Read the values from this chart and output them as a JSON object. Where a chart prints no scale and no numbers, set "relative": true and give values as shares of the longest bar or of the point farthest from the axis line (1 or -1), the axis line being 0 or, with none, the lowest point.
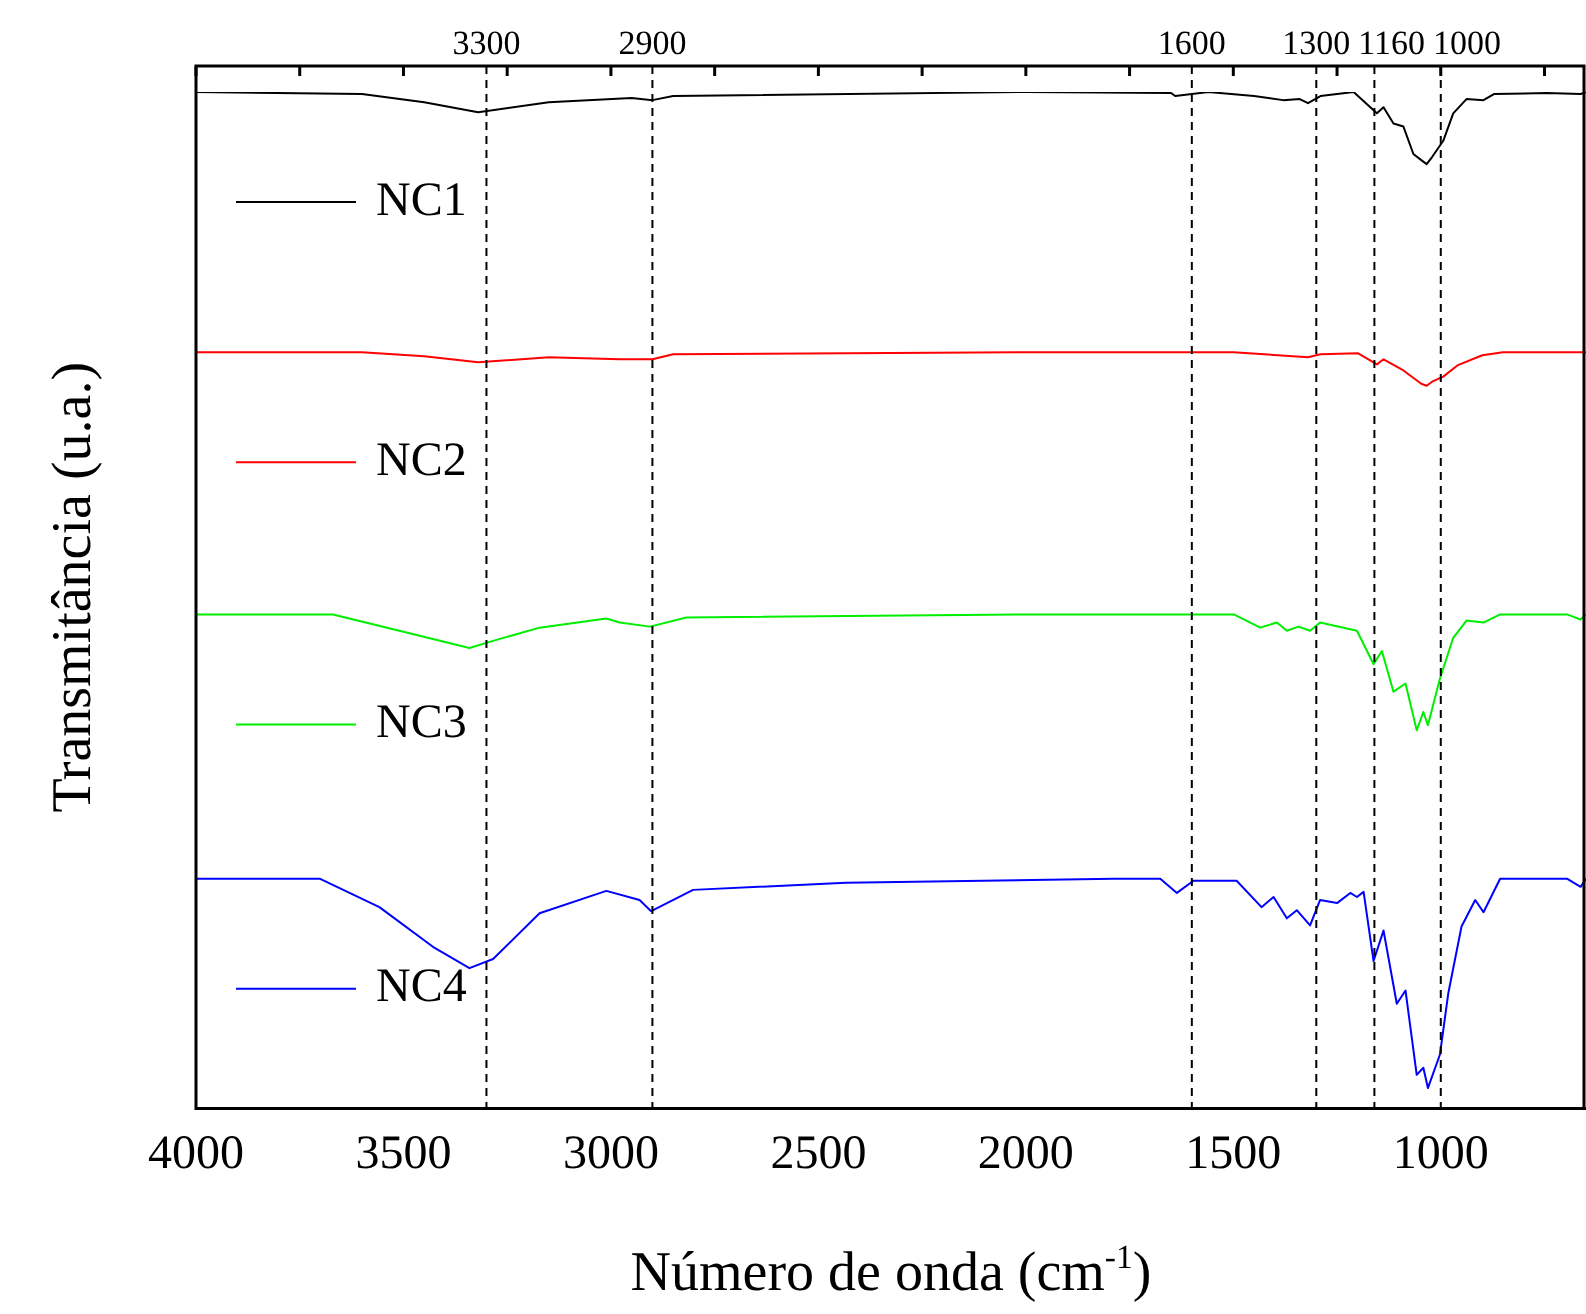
{
  "chart_data": {
    "type": "line",
    "relative": true,
    "xlabel": "Número de onda (cm$^{-1}$)",
    "ylabel": "Transmitância (u.a.)",
    "xlim": [
      4000,
      650
    ],
    "xticks": [
      4000,
      {
        "value": 3750,
        "label": null
      },
      3500,
      {
        "value": 3250,
        "label": null
      },
      3000,
      {
        "value": 2750,
        "label": null
      },
      2500,
      {
        "value": 2250,
        "label": null
      },
      2000,
      {
        "value": 1750,
        "label": null
      },
      1500,
      {
        "value": 1250,
        "label": null
      },
      1000,
      {
        "value": 750,
        "label": null
      }
    ],
    "marker": "none",
    "line_style": "solid",
    "legend": "left",
    "ref_lines": [
      {
        "axis": "x",
        "value": 3300,
        "label": "3300",
        "line_style": "dashed",
        "color": "#000000"
      },
      {
        "axis": "x",
        "value": 2900,
        "label": "2900",
        "line_style": "dashed",
        "color": "#000000"
      },
      {
        "axis": "x",
        "value": 1600,
        "label": "1600",
        "line_style": "dashed",
        "color": "#000000"
      },
      {
        "axis": "x",
        "value": 1300,
        "label": "1300",
        "line_style": "dashed",
        "color": "#000000"
      },
      {
        "axis": "x",
        "value": 1160,
        "label": "1160",
        "line_style": "dashed",
        "color": "#000000"
      },
      {
        "axis": "x",
        "value": 1000,
        "label": "1000",
        "line_style": "dashed",
        "color": "#000000"
      }
    ],
    "series": [
      {
        "name": "NC1",
        "color": "#000000",
        "x": [
          4000,
          3600,
          3450,
          3320,
          3150,
          2950,
          2900,
          2850,
          2000,
          1650,
          1640,
          1560,
          1450,
          1380,
          1340,
          1320,
          1290,
          1210,
          1154,
          1138,
          1114,
          1090,
          1066,
          1047,
          1034,
          1021,
          994,
          970,
          938,
          897,
          872,
          745,
          663,
          650
        ],
        "values": [
          1.0,
          0.998,
          0.99,
          0.98,
          0.99,
          0.994,
          0.992,
          0.996,
          1.0,
          0.999,
          0.996,
          1.0,
          0.996,
          0.992,
          0.993,
          0.989,
          0.996,
          1.0,
          0.979,
          0.985,
          0.969,
          0.966,
          0.939,
          0.933,
          0.929,
          0.936,
          0.952,
          0.979,
          0.993,
          0.992,
          0.998,
          0.999,
          0.998,
          1.0
        ]
      },
      {
        "name": "NC2",
        "color": "#ff0000",
        "x": [
          4000,
          3600,
          3450,
          3320,
          3150,
          2980,
          2900,
          2850,
          2000,
          1500,
          1320,
          1290,
          1200,
          1154,
          1138,
          1090,
          1047,
          1034,
          1021,
          994,
          960,
          900,
          850,
          650
        ],
        "values": [
          0.744,
          0.744,
          0.74,
          0.734,
          0.739,
          0.737,
          0.737,
          0.742,
          0.744,
          0.744,
          0.739,
          0.742,
          0.743,
          0.732,
          0.737,
          0.726,
          0.713,
          0.711,
          0.715,
          0.72,
          0.731,
          0.741,
          0.744,
          0.744
        ]
      },
      {
        "name": "NC3",
        "color": "#00ee00",
        "x": [
          4000,
          3670,
          3510,
          3341,
          3284,
          3172,
          3011,
          2979,
          2906,
          2818,
          2000,
          1499,
          1435,
          1395,
          1371,
          1343,
          1315,
          1291,
          1202,
          1162,
          1142,
          1114,
          1085,
          1058,
          1042,
          1031,
          1002,
          970,
          938,
          897,
          857,
          696,
          663,
          650
        ],
        "values": [
          0.486,
          0.486,
          0.47,
          0.453,
          0.46,
          0.473,
          0.482,
          0.478,
          0.474,
          0.483,
          0.486,
          0.486,
          0.473,
          0.478,
          0.47,
          0.474,
          0.47,
          0.478,
          0.47,
          0.437,
          0.45,
          0.41,
          0.418,
          0.372,
          0.39,
          0.377,
          0.423,
          0.463,
          0.48,
          0.478,
          0.486,
          0.486,
          0.481,
          0.486
        ]
      },
      {
        "name": "NC4",
        "color": "#0000ff",
        "x": [
          4000,
          3702,
          3558,
          3429,
          3341,
          3284,
          3172,
          3011,
          2931,
          2903,
          2802,
          2434,
          1789,
          1676,
          1636,
          1596,
          1492,
          1432,
          1403,
          1371,
          1347,
          1315,
          1291,
          1250,
          1218,
          1202,
          1186,
          1162,
          1138,
          1106,
          1085,
          1058,
          1042,
          1031,
          1002,
          982,
          950,
          917,
          897,
          857,
          696,
          663,
          650
        ],
        "values": [
          0.226,
          0.226,
          0.198,
          0.159,
          0.138,
          0.147,
          0.192,
          0.214,
          0.205,
          0.194,
          0.215,
          0.222,
          0.226,
          0.226,
          0.212,
          0.224,
          0.224,
          0.198,
          0.208,
          0.187,
          0.195,
          0.18,
          0.205,
          0.202,
          0.212,
          0.208,
          0.213,
          0.145,
          0.175,
          0.103,
          0.116,
          0.033,
          0.04,
          0.02,
          0.053,
          0.113,
          0.179,
          0.205,
          0.193,
          0.226,
          0.226,
          0.218,
          0.226
        ]
      }
    ]
  }
}
